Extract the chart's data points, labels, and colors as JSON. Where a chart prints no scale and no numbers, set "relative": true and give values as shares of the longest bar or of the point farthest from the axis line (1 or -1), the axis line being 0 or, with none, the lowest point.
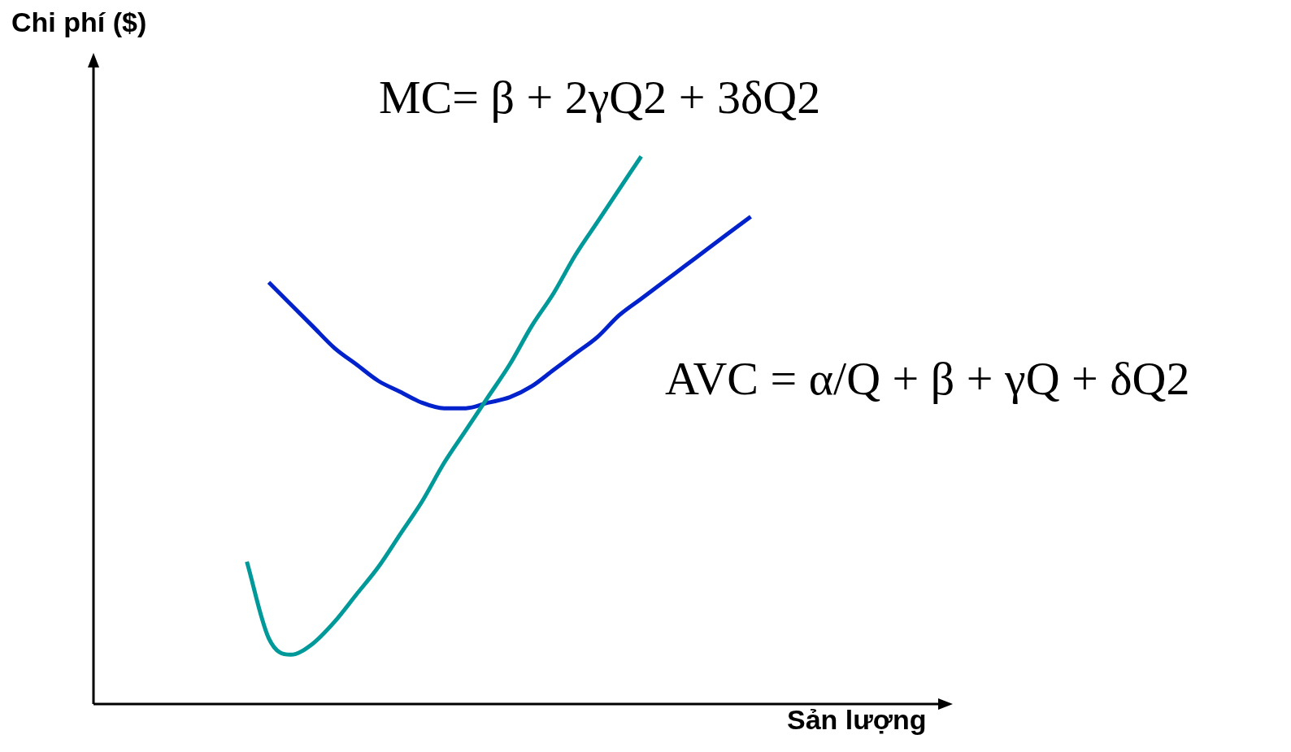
{
  "chart_data": {
    "type": "line",
    "relative": true,
    "marker": "none",
    "line_style": "solid",
    "xlabel": "Sản lượng",
    "ylabel": "Chi phí ($)",
    "annotations": [
      "MC= β + 2γQ2 + 3δQ2",
      "AVC = α/Q + β + γQ + δQ2"
    ],
    "categories": [
      null,
      null,
      null,
      null,
      null,
      null,
      null,
      null,
      null,
      null,
      null,
      null,
      null,
      null,
      null,
      null,
      null,
      null,
      null,
      null,
      null,
      null,
      null,
      null,
      null,
      null,
      null,
      null,
      null,
      null,
      null,
      null,
      null,
      null,
      null,
      null,
      null,
      null,
      null,
      null
    ],
    "series": [
      {
        "color": "#009999",
        "values": [
          null,
          null,
          null,
          null,
          null,
          null,
          null,
          0.26,
          0.12,
          0.09,
          0.11,
          0.15,
          0.2,
          0.25,
          0.31,
          0.37,
          0.44,
          0.5,
          0.56,
          0.62,
          0.69,
          0.75,
          0.82,
          0.88,
          0.94,
          1,
          null,
          null,
          null,
          null,
          null,
          null,
          null,
          null,
          null,
          null,
          null,
          null,
          null,
          null
        ]
      },
      {
        "color": "#0022cc",
        "values": [
          null,
          null,
          null,
          null,
          null,
          null,
          null,
          null,
          0.77,
          0.73,
          0.69,
          0.65,
          0.62,
          0.59,
          0.57,
          0.55,
          0.54,
          0.54,
          0.55,
          0.56,
          0.58,
          0.61,
          0.64,
          0.67,
          0.71,
          0.74,
          0.77,
          0.8,
          0.83,
          0.86,
          0.89,
          null,
          null,
          null,
          null,
          null,
          null,
          null,
          null,
          null
        ]
      }
    ]
  }
}
